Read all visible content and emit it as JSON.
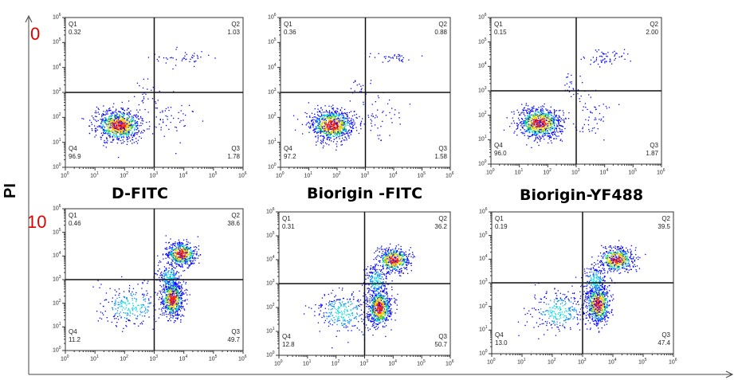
{
  "chart_data": {
    "type": "scatter",
    "ylabel": "PI",
    "row_labels": [
      "0",
      "10"
    ],
    "axis_scale": "log",
    "ticks": [
      "0",
      "1",
      "2",
      "3",
      "4",
      "5",
      "6"
    ],
    "xlim": [
      0,
      6
    ],
    "ylim": [
      0,
      6
    ],
    "gate": {
      "x": 3,
      "y": 3
    },
    "quadrant_names": [
      "Q1",
      "Q2",
      "Q3",
      "Q4"
    ],
    "panels": [
      {
        "title": "D-FITC",
        "row": 0,
        "q": [
          "0.32",
          "1.03",
          "1.78",
          "96.9"
        ],
        "pops": [
          [
            1.8,
            1.7,
            0.38,
            0.3,
            900
          ],
          [
            3.9,
            4.4,
            0.45,
            0.15,
            45
          ],
          [
            3.6,
            2.0,
            0.35,
            0.45,
            50
          ],
          [
            2.7,
            2.9,
            0.2,
            0.3,
            25
          ]
        ]
      },
      {
        "title": "Biorigin -FITC",
        "row": 0,
        "q": [
          "0.36",
          "0.88",
          "1.58",
          "97.2"
        ],
        "pops": [
          [
            1.8,
            1.7,
            0.38,
            0.3,
            900
          ],
          [
            4.0,
            4.4,
            0.4,
            0.12,
            35
          ],
          [
            3.5,
            2.0,
            0.35,
            0.45,
            45
          ],
          [
            2.8,
            3.0,
            0.2,
            0.3,
            20
          ]
        ]
      },
      {
        "title": "Biorigin-YF488",
        "row": 0,
        "q": [
          "0.15",
          "2.00",
          "1.87",
          "96.0"
        ],
        "pops": [
          [
            1.7,
            1.7,
            0.38,
            0.3,
            900
          ],
          [
            4.1,
            4.4,
            0.4,
            0.15,
            60
          ],
          [
            3.6,
            2.0,
            0.3,
            0.4,
            50
          ],
          [
            2.9,
            3.1,
            0.2,
            0.3,
            25
          ]
        ]
      },
      {
        "title": "",
        "row": 1,
        "q": [
          "0.46",
          "38.6",
          "49.7",
          "11.2"
        ],
        "pops": [
          [
            3.9,
            4.1,
            0.25,
            0.25,
            550
          ],
          [
            3.6,
            2.2,
            0.18,
            0.38,
            650
          ],
          [
            2.2,
            1.9,
            0.55,
            0.45,
            250
          ],
          [
            3.5,
            3.1,
            0.2,
            0.3,
            200
          ]
        ]
      },
      {
        "title": "",
        "row": 1,
        "q": [
          "0.31",
          "36.2",
          "50.7",
          "12.8"
        ],
        "pops": [
          [
            4.0,
            4.0,
            0.28,
            0.25,
            500
          ],
          [
            3.5,
            2.0,
            0.2,
            0.38,
            700
          ],
          [
            2.2,
            1.8,
            0.5,
            0.45,
            280
          ],
          [
            3.4,
            3.1,
            0.2,
            0.35,
            200
          ]
        ]
      },
      {
        "title": "",
        "row": 1,
        "q": [
          "0.19",
          "39.5",
          "47.4",
          "13.0"
        ],
        "pops": [
          [
            4.1,
            4.0,
            0.28,
            0.25,
            520
          ],
          [
            3.5,
            2.1,
            0.2,
            0.4,
            680
          ],
          [
            2.2,
            1.8,
            0.5,
            0.45,
            280
          ],
          [
            3.4,
            3.1,
            0.2,
            0.35,
            220
          ]
        ]
      }
    ]
  }
}
